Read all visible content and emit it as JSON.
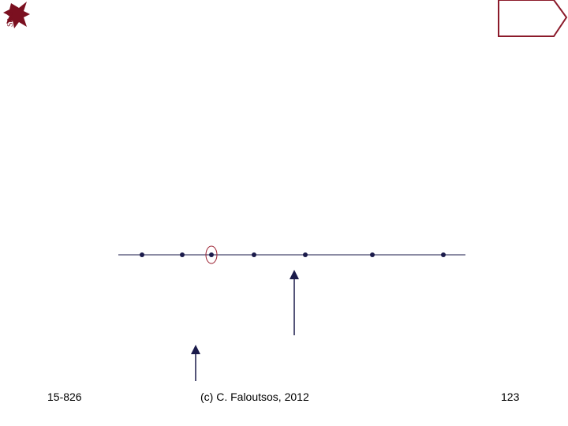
{
  "footer": {
    "course": "15-826",
    "copyright": "(c) C. Faloutsos, 2012",
    "page": "123"
  }
}
